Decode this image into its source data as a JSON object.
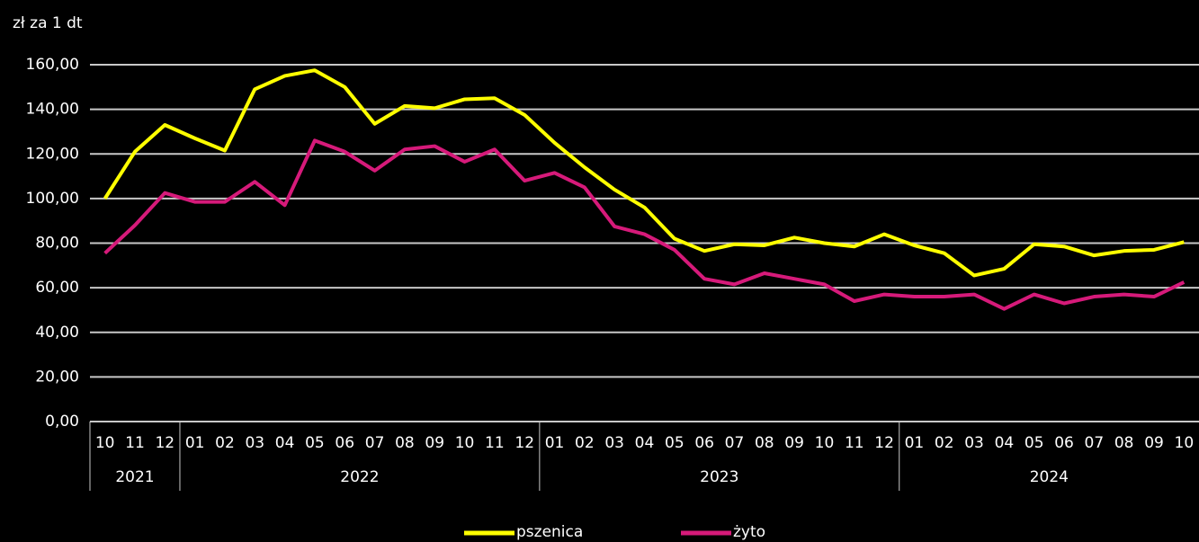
{
  "chart_data": {
    "type": "line",
    "y_axis_label": "zł za 1 dt",
    "categories": [
      "10",
      "11",
      "12",
      "01",
      "02",
      "03",
      "04",
      "05",
      "06",
      "07",
      "08",
      "09",
      "10",
      "11",
      "12",
      "01",
      "02",
      "03",
      "04",
      "05",
      "06",
      "07",
      "08",
      "09",
      "10",
      "11",
      "12",
      "01",
      "02",
      "03",
      "04",
      "05",
      "06",
      "07",
      "08",
      "09",
      "10"
    ],
    "years": [
      "2021",
      "2022",
      "2023",
      "2024"
    ],
    "series": [
      {
        "name": "pszenica",
        "color": "#ffff00",
        "values": [
          100,
          121,
          133,
          127,
          121.5,
          149,
          155,
          157.5,
          150,
          133.5,
          141.5,
          140.5,
          144.5,
          145,
          137.5,
          125,
          114,
          104,
          96,
          82,
          76.5,
          79.5,
          79,
          82.5,
          80,
          78.5,
          84,
          79,
          75.5,
          65.5,
          68.5,
          79.5,
          78.5,
          74.5,
          76.5,
          77,
          80.5
        ]
      },
      {
        "name": "żyto",
        "color": "#d61a7a",
        "values": [
          75.5,
          88,
          102.5,
          98.5,
          98.5,
          107.5,
          97,
          126,
          121,
          112.5,
          122,
          123.5,
          116.5,
          122,
          108,
          111.5,
          105,
          87.5,
          84,
          77,
          64,
          61.5,
          66.5,
          64,
          61.5,
          54,
          57,
          56,
          56,
          57,
          50.5,
          57,
          53,
          56,
          57,
          56,
          62.5
        ]
      }
    ],
    "ylim": [
      0,
      160
    ],
    "yticks": [
      {
        "value": 0,
        "label": "0,00"
      },
      {
        "value": 20,
        "label": "20,00"
      },
      {
        "value": 40,
        "label": "40,00"
      },
      {
        "value": 60,
        "label": "60,00"
      },
      {
        "value": 80,
        "label": "80,00"
      },
      {
        "value": 100,
        "label": "100,00"
      },
      {
        "value": 120,
        "label": "120,00"
      },
      {
        "value": 140,
        "label": "140,00"
      },
      {
        "value": 160,
        "label": "160,00"
      }
    ],
    "grid": true,
    "legend": "bottom"
  }
}
